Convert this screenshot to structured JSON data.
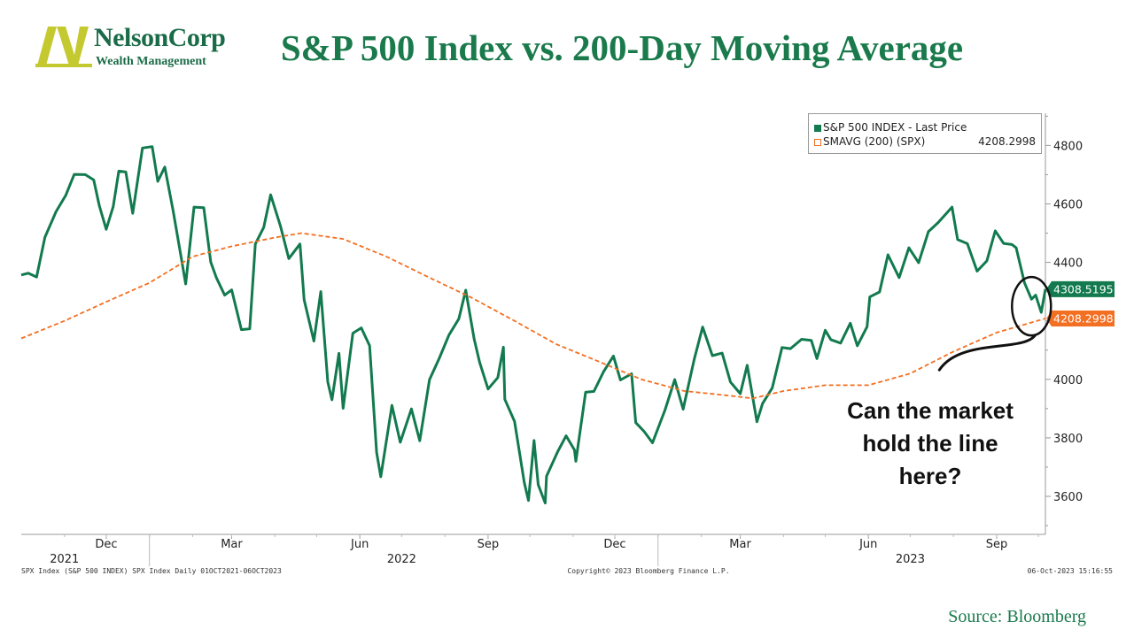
{
  "header": {
    "logo_name": "NelsonCorp",
    "logo_subtitle": "Wealth Management",
    "title": "S&P 500 Index vs. 200-Day Moving Average"
  },
  "legend": {
    "items": [
      {
        "label": "S&P 500 INDEX - Last Price",
        "value": ""
      },
      {
        "label": "SMAVG (200) (SPX)",
        "value": "4208.2998"
      }
    ]
  },
  "annotation": {
    "lines": [
      "Can the market",
      "hold the line",
      "here?"
    ]
  },
  "footer": {
    "left": "SPX Index (S&P 500 INDEX) SPX Index  Daily 01OCT2021-06OCT2023",
    "center": "Copyright© 2023 Bloomberg Finance L.P.",
    "right": "06-Oct-2023 15:16:55"
  },
  "source": "Source: Bloomberg",
  "colors": {
    "price": "#127a4e",
    "sma": "#f36f21",
    "title": "#1a7a4c",
    "logo_yellow": "#c5c930"
  },
  "chart_data": {
    "type": "line",
    "x_range": [
      "2021-10-01",
      "2023-10-06"
    ],
    "ylim": [
      3470,
      4910
    ],
    "y_ticks": [
      3600,
      3800,
      4000,
      4200,
      4400,
      4600,
      4800
    ],
    "x_ticks": [
      {
        "date": "2021-12-01",
        "label": "Dec"
      },
      {
        "date": "2022-03-01",
        "label": "Mar"
      },
      {
        "date": "2022-06-01",
        "label": "Jun"
      },
      {
        "date": "2022-09-01",
        "label": "Sep"
      },
      {
        "date": "2022-12-01",
        "label": "Dec"
      },
      {
        "date": "2023-03-01",
        "label": "Mar"
      },
      {
        "date": "2023-06-01",
        "label": "Jun"
      },
      {
        "date": "2023-09-01",
        "label": "Sep"
      }
    ],
    "year_labels": [
      {
        "date": "2021-11-01",
        "label": "2021"
      },
      {
        "date": "2022-07-01",
        "label": "2022"
      },
      {
        "date": "2023-07-01",
        "label": "2023"
      }
    ],
    "year_dividers": [
      "2022-01-01",
      "2023-01-01"
    ],
    "last_values": [
      {
        "series": "S&P 500 INDEX - Last Price",
        "value": 4308.5195,
        "label": "4308.5195"
      },
      {
        "series": "SMAVG (200) (SPX)",
        "value": 4208.2998,
        "label": "4208.2998"
      }
    ],
    "series": [
      {
        "name": "S&P 500 INDEX - Last Price",
        "style": "solid",
        "points": [
          [
            "2021-10-01",
            4357
          ],
          [
            "2021-10-06",
            4363
          ],
          [
            "2021-10-12",
            4350
          ],
          [
            "2021-10-18",
            4486
          ],
          [
            "2021-10-26",
            4574
          ],
          [
            "2021-11-02",
            4630
          ],
          [
            "2021-11-08",
            4701
          ],
          [
            "2021-11-16",
            4700
          ],
          [
            "2021-11-22",
            4682
          ],
          [
            "2021-11-26",
            4594
          ],
          [
            "2021-12-01",
            4513
          ],
          [
            "2021-12-06",
            4591
          ],
          [
            "2021-12-10",
            4712
          ],
          [
            "2021-12-15",
            4709
          ],
          [
            "2021-12-20",
            4568
          ],
          [
            "2021-12-27",
            4791
          ],
          [
            "2022-01-03",
            4796
          ],
          [
            "2022-01-07",
            4677
          ],
          [
            "2022-01-12",
            4726
          ],
          [
            "2022-01-18",
            4577
          ],
          [
            "2022-01-24",
            4410
          ],
          [
            "2022-01-27",
            4326
          ],
          [
            "2022-02-02",
            4589
          ],
          [
            "2022-02-09",
            4587
          ],
          [
            "2022-02-14",
            4401
          ],
          [
            "2022-02-18",
            4348
          ],
          [
            "2022-02-24",
            4288
          ],
          [
            "2022-03-01",
            4306
          ],
          [
            "2022-03-08",
            4170
          ],
          [
            "2022-03-14",
            4173
          ],
          [
            "2022-03-18",
            4463
          ],
          [
            "2022-03-24",
            4520
          ],
          [
            "2022-03-29",
            4631
          ],
          [
            "2022-04-05",
            4525
          ],
          [
            "2022-04-11",
            4413
          ],
          [
            "2022-04-19",
            4463
          ],
          [
            "2022-04-22",
            4272
          ],
          [
            "2022-04-29",
            4131
          ],
          [
            "2022-05-04",
            4300
          ],
          [
            "2022-05-09",
            3991
          ],
          [
            "2022-05-12",
            3930
          ],
          [
            "2022-05-17",
            4089
          ],
          [
            "2022-05-20",
            3901
          ],
          [
            "2022-05-27",
            4158
          ],
          [
            "2022-06-02",
            4176
          ],
          [
            "2022-06-08",
            4115
          ],
          [
            "2022-06-13",
            3750
          ],
          [
            "2022-06-16",
            3667
          ],
          [
            "2022-06-24",
            3911
          ],
          [
            "2022-06-30",
            3785
          ],
          [
            "2022-07-08",
            3899
          ],
          [
            "2022-07-14",
            3790
          ],
          [
            "2022-07-21",
            3999
          ],
          [
            "2022-07-28",
            4072
          ],
          [
            "2022-08-04",
            4152
          ],
          [
            "2022-08-11",
            4207
          ],
          [
            "2022-08-16",
            4305
          ],
          [
            "2022-08-22",
            4138
          ],
          [
            "2022-08-26",
            4058
          ],
          [
            "2022-09-01",
            3967
          ],
          [
            "2022-09-08",
            4006
          ],
          [
            "2022-09-12",
            4110
          ],
          [
            "2022-09-13",
            3932
          ],
          [
            "2022-09-20",
            3856
          ],
          [
            "2022-09-27",
            3647
          ],
          [
            "2022-09-30",
            3586
          ],
          [
            "2022-10-04",
            3791
          ],
          [
            "2022-10-07",
            3640
          ],
          [
            "2022-10-12",
            3577
          ],
          [
            "2022-10-13",
            3669
          ],
          [
            "2022-10-21",
            3753
          ],
          [
            "2022-10-27",
            3807
          ],
          [
            "2022-11-02",
            3759
          ],
          [
            "2022-11-03",
            3720
          ],
          [
            "2022-11-10",
            3956
          ],
          [
            "2022-11-16",
            3959
          ],
          [
            "2022-11-23",
            4027
          ],
          [
            "2022-11-30",
            4080
          ],
          [
            "2022-12-05",
            3998
          ],
          [
            "2022-12-13",
            4019
          ],
          [
            "2022-12-16",
            3852
          ],
          [
            "2022-12-22",
            3822
          ],
          [
            "2022-12-28",
            3783
          ],
          [
            "2023-01-06",
            3895
          ],
          [
            "2023-01-13",
            3999
          ],
          [
            "2023-01-19",
            3898
          ],
          [
            "2023-01-27",
            4070
          ],
          [
            "2023-02-02",
            4179
          ],
          [
            "2023-02-09",
            4081
          ],
          [
            "2023-02-16",
            4090
          ],
          [
            "2023-02-22",
            3991
          ],
          [
            "2023-03-01",
            3951
          ],
          [
            "2023-03-06",
            4048
          ],
          [
            "2023-03-13",
            3855
          ],
          [
            "2023-03-17",
            3917
          ],
          [
            "2023-03-24",
            3971
          ],
          [
            "2023-03-31",
            4109
          ],
          [
            "2023-04-06",
            4105
          ],
          [
            "2023-04-14",
            4137
          ],
          [
            "2023-04-21",
            4133
          ],
          [
            "2023-04-25",
            4071
          ],
          [
            "2023-05-01",
            4168
          ],
          [
            "2023-05-05",
            4136
          ],
          [
            "2023-05-12",
            4124
          ],
          [
            "2023-05-19",
            4192
          ],
          [
            "2023-05-24",
            4115
          ],
          [
            "2023-05-31",
            4180
          ],
          [
            "2023-06-02",
            4282
          ],
          [
            "2023-06-09",
            4299
          ],
          [
            "2023-06-15",
            4426
          ],
          [
            "2023-06-23",
            4348
          ],
          [
            "2023-06-30",
            4450
          ],
          [
            "2023-07-07",
            4399
          ],
          [
            "2023-07-14",
            4505
          ],
          [
            "2023-07-21",
            4536
          ],
          [
            "2023-07-31",
            4589
          ],
          [
            "2023-08-04",
            4478
          ],
          [
            "2023-08-11",
            4464
          ],
          [
            "2023-08-18",
            4370
          ],
          [
            "2023-08-25",
            4405
          ],
          [
            "2023-08-31",
            4508
          ],
          [
            "2023-09-06",
            4465
          ],
          [
            "2023-09-12",
            4461
          ],
          [
            "2023-09-15",
            4450
          ],
          [
            "2023-09-21",
            4330
          ],
          [
            "2023-09-26",
            4274
          ],
          [
            "2023-09-29",
            4288
          ],
          [
            "2023-10-03",
            4229
          ],
          [
            "2023-10-06",
            4308.5195
          ]
        ]
      },
      {
        "name": "SMAVG (200) (SPX)",
        "style": "dashed",
        "points": [
          [
            "2021-10-01",
            4140
          ],
          [
            "2021-11-01",
            4200
          ],
          [
            "2021-12-01",
            4265
          ],
          [
            "2022-01-01",
            4330
          ],
          [
            "2022-02-01",
            4420
          ],
          [
            "2022-03-01",
            4455
          ],
          [
            "2022-04-01",
            4485
          ],
          [
            "2022-04-20",
            4500
          ],
          [
            "2022-05-20",
            4480
          ],
          [
            "2022-06-20",
            4420
          ],
          [
            "2022-07-20",
            4350
          ],
          [
            "2022-08-20",
            4280
          ],
          [
            "2022-09-20",
            4200
          ],
          [
            "2022-10-20",
            4120
          ],
          [
            "2022-11-20",
            4060
          ],
          [
            "2022-12-20",
            4000
          ],
          [
            "2023-01-20",
            3960
          ],
          [
            "2023-02-20",
            3945
          ],
          [
            "2023-03-10",
            3935
          ],
          [
            "2023-04-01",
            3960
          ],
          [
            "2023-05-01",
            3980
          ],
          [
            "2023-06-01",
            3980
          ],
          [
            "2023-07-01",
            4020
          ],
          [
            "2023-08-01",
            4095
          ],
          [
            "2023-09-01",
            4160
          ],
          [
            "2023-10-06",
            4208.2998
          ]
        ]
      }
    ]
  }
}
